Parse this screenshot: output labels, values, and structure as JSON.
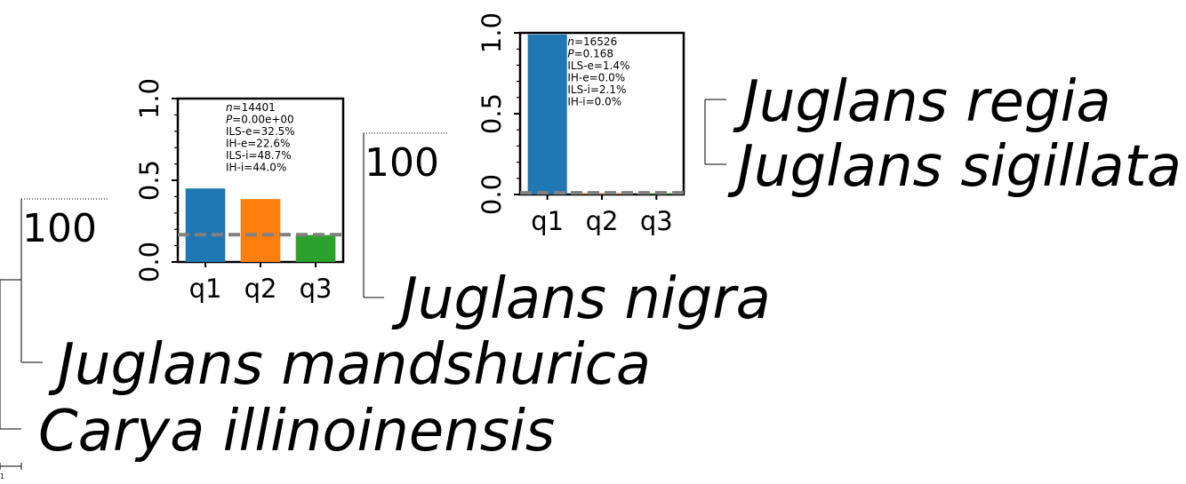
{
  "tree": {
    "taxa": [
      "Juglans regia",
      "Juglans sigillata",
      "Juglans nigra",
      "Juglans mandshurica",
      "Carya illinoinensis"
    ],
    "support_values": [
      "100",
      "100"
    ],
    "scale_label": "1"
  },
  "chart_data": [
    {
      "type": "bar",
      "categories": [
        "q1",
        "q2",
        "q3"
      ],
      "values": [
        0.45,
        0.385,
        0.165
      ],
      "colors": [
        "#1f77b4",
        "#ff7f0e",
        "#2ca02c"
      ],
      "reference_line": 0.167,
      "reference_line_color": "#808080",
      "ylim": [
        0,
        1.0
      ],
      "yticks": [
        "0.0",
        "0.5",
        "1.0"
      ],
      "stats": [
        "n=14401",
        "P=0.00e+00",
        "ILS-e=32.5%",
        "IH-e=22.6%",
        "ILS-i=48.7%",
        "IH-i=44.0%"
      ]
    },
    {
      "type": "bar",
      "categories": [
        "q1",
        "q2",
        "q3"
      ],
      "values": [
        0.99,
        0.005,
        0.005
      ],
      "colors": [
        "#1f77b4",
        "#ff7f0e",
        "#2ca02c"
      ],
      "reference_line": 0.01,
      "reference_line_color": "#808080",
      "ylim": [
        0,
        1.0
      ],
      "yticks": [
        "0.0",
        "0.5",
        "1.0"
      ],
      "stats": [
        "n=16526",
        "P=0.168",
        "ILS-e=1.4%",
        "IH-e=0.0%",
        "ILS-i=2.1%",
        "IH-i=0.0%"
      ]
    }
  ]
}
